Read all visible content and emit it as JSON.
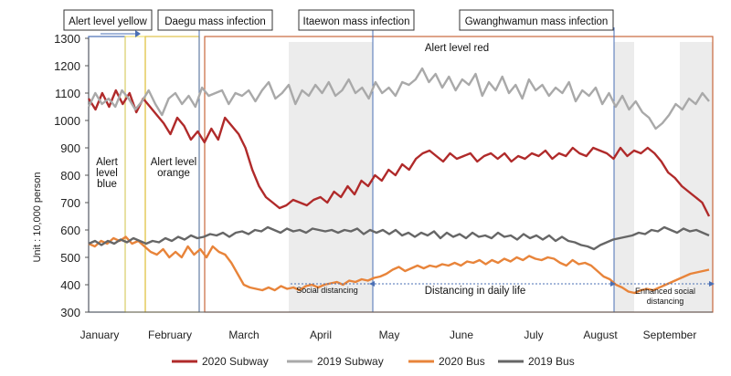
{
  "chart_data": {
    "type": "line",
    "title": "",
    "ylabel": "Unit : 10,000 person",
    "xlabel": "",
    "ylim": [
      300,
      1300
    ],
    "yticks": [
      300,
      400,
      500,
      600,
      700,
      800,
      900,
      1000,
      1100,
      1200,
      1300
    ],
    "months": [
      "January",
      "February",
      "March",
      "April",
      "May",
      "June",
      "July",
      "August",
      "September"
    ],
    "legend_position": "bottom",
    "grid": false,
    "series": [
      {
        "name": "2020 Subway",
        "color": "#b02a2a",
        "values": [
          1080,
          1040,
          1100,
          1050,
          1110,
          1060,
          1100,
          1030,
          1080,
          1050,
          1020,
          990,
          950,
          1010,
          980,
          930,
          960,
          920,
          970,
          930,
          1010,
          980,
          950,
          900,
          820,
          760,
          720,
          700,
          680,
          690,
          710,
          700,
          690,
          710,
          720,
          700,
          740,
          720,
          760,
          730,
          780,
          760,
          800,
          780,
          820,
          800,
          840,
          820,
          860,
          880,
          890,
          870,
          850,
          880,
          860,
          870,
          880,
          850,
          870,
          880,
          860,
          880,
          850,
          870,
          860,
          880,
          870,
          890,
          860,
          880,
          870,
          900,
          880,
          870,
          900,
          890,
          880,
          860,
          900,
          870,
          890,
          880,
          900,
          880,
          850,
          810,
          790,
          760,
          740,
          720,
          700,
          650
        ]
      },
      {
        "name": "2019 Subway",
        "color": "#a9a9a9",
        "values": [
          1050,
          1100,
          1060,
          1080,
          1050,
          1110,
          1080,
          1040,
          1070,
          1110,
          1060,
          1020,
          1080,
          1100,
          1060,
          1090,
          1050,
          1120,
          1090,
          1100,
          1110,
          1060,
          1100,
          1090,
          1110,
          1070,
          1110,
          1140,
          1080,
          1100,
          1130,
          1060,
          1110,
          1090,
          1130,
          1100,
          1140,
          1090,
          1110,
          1150,
          1100,
          1120,
          1080,
          1140,
          1100,
          1120,
          1090,
          1140,
          1130,
          1150,
          1190,
          1140,
          1170,
          1120,
          1160,
          1110,
          1150,
          1130,
          1170,
          1090,
          1140,
          1110,
          1160,
          1100,
          1130,
          1080,
          1150,
          1110,
          1130,
          1090,
          1120,
          1100,
          1140,
          1070,
          1110,
          1090,
          1120,
          1060,
          1100,
          1050,
          1090,
          1040,
          1070,
          1030,
          1010,
          970,
          990,
          1020,
          1060,
          1040,
          1080,
          1060,
          1100,
          1070
        ]
      },
      {
        "name": "2020 Bus",
        "color": "#e8843a",
        "values": [
          550,
          540,
          560,
          550,
          570,
          560,
          575,
          550,
          560,
          540,
          520,
          510,
          530,
          500,
          520,
          500,
          540,
          510,
          530,
          500,
          540,
          520,
          510,
          480,
          440,
          400,
          390,
          385,
          380,
          390,
          380,
          395,
          385,
          390,
          380,
          395,
          400,
          390,
          400,
          405,
          410,
          400,
          415,
          410,
          420,
          415,
          425,
          430,
          440,
          455,
          465,
          450,
          460,
          470,
          460,
          470,
          465,
          475,
          470,
          480,
          470,
          485,
          480,
          490,
          475,
          490,
          480,
          495,
          485,
          500,
          490,
          505,
          495,
          490,
          500,
          495,
          480,
          470,
          490,
          475,
          480,
          470,
          450,
          430,
          420,
          400,
          390,
          375,
          370,
          380,
          385,
          380,
          390,
          400,
          410,
          420,
          430,
          440,
          445,
          450,
          455
        ]
      },
      {
        "name": "2019 Bus",
        "color": "#666666",
        "values": [
          550,
          560,
          545,
          560,
          550,
          565,
          555,
          570,
          560,
          550,
          560,
          555,
          570,
          560,
          575,
          565,
          580,
          570,
          575,
          585,
          580,
          590,
          575,
          590,
          595,
          585,
          600,
          595,
          610,
          600,
          590,
          605,
          595,
          600,
          590,
          605,
          600,
          595,
          600,
          590,
          600,
          595,
          605,
          585,
          600,
          590,
          600,
          585,
          600,
          580,
          590,
          575,
          590,
          580,
          595,
          570,
          590,
          575,
          585,
          570,
          590,
          575,
          580,
          570,
          590,
          575,
          580,
          565,
          585,
          570,
          580,
          565,
          580,
          560,
          575,
          560,
          555,
          545,
          540,
          530,
          545,
          555,
          565,
          570,
          575,
          580,
          590,
          585,
          600,
          595,
          610,
          600,
          590,
          605,
          595,
          600,
          590,
          580
        ]
      }
    ],
    "phases": [
      {
        "label": "Alert level blue",
        "lines": [
          "Alert",
          "level",
          "blue"
        ],
        "color": "#4a6fb5"
      },
      {
        "label": "Alert level orange",
        "lines": [
          "Alert level",
          "orange"
        ],
        "color": "#e0c24a"
      },
      {
        "label": "Alert level red",
        "lines": [
          "Alert level red"
        ],
        "color": "#c9673d"
      }
    ],
    "events": [
      {
        "label": "Alert level yellow"
      },
      {
        "label": "Daegu mass infection"
      },
      {
        "label": "Itaewon mass infection"
      },
      {
        "label": "Gwanghwamun mass infection"
      }
    ],
    "periods": [
      {
        "label": "Social distancing",
        "lines": [
          "Social distancing"
        ]
      },
      {
        "label": "Distancing in daily life",
        "lines": [
          "Distancing in daily life"
        ]
      },
      {
        "label": "Enhanced social distancing",
        "lines": [
          "Enhanced social",
          "distancing"
        ]
      }
    ]
  }
}
